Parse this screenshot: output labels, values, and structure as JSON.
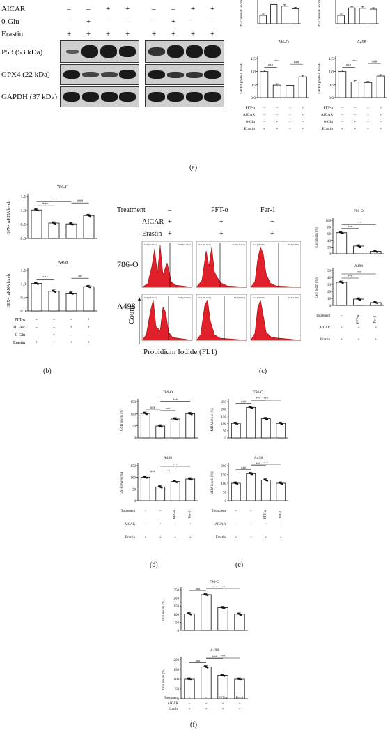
{
  "panel_a": {
    "label": "(a)",
    "blot_rows": [
      {
        "name": "AICAR",
        "signs": [
          "–",
          "–",
          "+",
          "+"
        ],
        "signs2": [
          "–",
          "–",
          "+",
          "+"
        ]
      },
      {
        "name": "0-Glu",
        "signs": [
          "–",
          "+",
          "–",
          "–"
        ],
        "signs2": [
          "–",
          "+",
          "–",
          "–"
        ]
      },
      {
        "name": "Erastin",
        "signs": [
          "+",
          "+",
          "+",
          "+"
        ],
        "signs2": [
          "+",
          "+",
          "+",
          "+"
        ]
      }
    ],
    "bands": [
      "P53 (53 kDa)",
      "GPX4 (22 kDa)",
      "GAPDH (37 kDa)"
    ]
  },
  "panel_b": {
    "label": "(b)"
  },
  "panel_c": {
    "label": "(c)",
    "treatments": [
      "Treatment",
      "AICAR",
      "Erastin"
    ],
    "cols": [
      {
        "t": "–",
        "a": "+",
        "e": "+"
      },
      {
        "t": "PFT-α",
        "a": "+",
        "e": "+"
      },
      {
        "t": "Fer-1",
        "a": "+",
        "e": "+"
      }
    ],
    "cell_lines": [
      "786-O",
      "A498"
    ],
    "y_axis": "Count",
    "x_axis": "Propidium Iodide (FL1)",
    "gates": [
      [
        "V1L(37.94%)",
        "V1R(61.93%)"
      ],
      [
        "V1L(76.37%)",
        "V1R(19.53%)"
      ],
      [
        "V1L(93.34%)",
        "V1R(6.60%)"
      ],
      [
        "V1L(78.30%)",
        "V1R(20.56%)"
      ],
      [
        "V1L(90.44%)",
        "V1R(9.56%)"
      ],
      [
        "V1L(97.55%)",
        "V1R(2.45%)"
      ]
    ]
  },
  "panel_d": {
    "label": "(d)"
  },
  "panel_e": {
    "label": "(e)"
  },
  "panel_f": {
    "label": "(f)"
  },
  "chart_data": [
    {
      "id": "a-p53-786",
      "type": "bar",
      "title": "",
      "ylabel": "P53 protein levels",
      "ylim": [
        0,
        2.5
      ],
      "categories": [
        "1",
        "2",
        "3",
        "4"
      ],
      "values": [
        1.0,
        2.3,
        2.1,
        1.8
      ]
    },
    {
      "id": "a-p53-a498",
      "type": "bar",
      "title": "",
      "ylabel": "P53 protein levels",
      "ylim": [
        0,
        2.5
      ],
      "categories": [
        "1",
        "2",
        "3",
        "4"
      ],
      "values": [
        1.0,
        1.9,
        1.85,
        1.75
      ]
    },
    {
      "id": "a-gpx4-786",
      "type": "bar",
      "title": "786-O",
      "ylabel": "GPX4 protein levels",
      "ylim": [
        0,
        1.5
      ],
      "yticks": [
        "0.0",
        "0.5",
        "1.0",
        "1.5"
      ],
      "categories": [
        "1",
        "2",
        "3",
        "4"
      ],
      "values": [
        1.0,
        0.48,
        0.47,
        0.8
      ],
      "sig": [
        {
          "from": 0,
          "to": 1,
          "label": "***"
        },
        {
          "from": 0,
          "to": 2,
          "label": "***"
        },
        {
          "from": 2,
          "to": 3,
          "label": "###"
        }
      ],
      "conditions": [
        {
          "name": "PFT-α",
          "signs": [
            "–",
            "–",
            "–",
            "+"
          ]
        },
        {
          "name": "AICAR",
          "signs": [
            "–",
            "–",
            "+",
            "+"
          ]
        },
        {
          "name": "0-Glu",
          "signs": [
            "–",
            "+",
            "–",
            "–"
          ]
        },
        {
          "name": "Erastin",
          "signs": [
            "+",
            "+",
            "+",
            "+"
          ]
        }
      ]
    },
    {
      "id": "a-gpx4-a498",
      "type": "bar",
      "title": "A498",
      "ylabel": "GPX4 protein levels",
      "ylim": [
        0,
        1.5
      ],
      "yticks": [
        "0.0",
        "0.5",
        "1.0",
        "1.5"
      ],
      "categories": [
        "1",
        "2",
        "3",
        "4"
      ],
      "values": [
        1.0,
        0.6,
        0.58,
        0.83
      ],
      "sig": [
        {
          "from": 0,
          "to": 1,
          "label": "***"
        },
        {
          "from": 0,
          "to": 2,
          "label": "***"
        },
        {
          "from": 2,
          "to": 3,
          "label": "###"
        }
      ],
      "conditions": [
        {
          "name": "PFT-α",
          "signs": [
            "–",
            "–",
            "–",
            "+"
          ]
        },
        {
          "name": "AICAR",
          "signs": [
            "–",
            "–",
            "+",
            "+"
          ]
        },
        {
          "name": "0-Glu",
          "signs": [
            "–",
            "+",
            "–",
            "–"
          ]
        },
        {
          "name": "Erastin",
          "signs": [
            "+",
            "+",
            "+",
            "+"
          ]
        }
      ]
    },
    {
      "id": "b-786",
      "type": "bar",
      "title": "786-O",
      "ylabel": "GPX4 mRNA levels",
      "ylim": [
        0,
        1.5
      ],
      "yticks": [
        "0.0",
        "0.5",
        "1.0",
        "1.5"
      ],
      "categories": [
        "1",
        "2",
        "3",
        "4"
      ],
      "values": [
        1.02,
        0.55,
        0.52,
        0.82
      ],
      "sig": [
        {
          "from": 0,
          "to": 1,
          "label": "***"
        },
        {
          "from": 0,
          "to": 2,
          "label": "***"
        },
        {
          "from": 2,
          "to": 3,
          "label": "###"
        }
      ]
    },
    {
      "id": "b-a498",
      "type": "bar",
      "title": "A498",
      "ylabel": "GPX4 mRNA levels",
      "ylim": [
        0,
        1.5
      ],
      "yticks": [
        "0.0",
        "0.5",
        "1.0",
        "1.5"
      ],
      "categories": [
        "1",
        "2",
        "3",
        "4"
      ],
      "values": [
        1.02,
        0.73,
        0.66,
        0.9
      ],
      "sig": [
        {
          "from": 0,
          "to": 1,
          "label": "***"
        },
        {
          "from": 2,
          "to": 3,
          "label": "##"
        }
      ],
      "conditions": [
        {
          "name": "PFT-α",
          "signs": [
            "–",
            "–",
            "–",
            "+"
          ]
        },
        {
          "name": "AICAR",
          "signs": [
            "–",
            "–",
            "+",
            "+"
          ]
        },
        {
          "name": "0-Glu",
          "signs": [
            "–",
            "+",
            "–",
            "–"
          ]
        },
        {
          "name": "Erastin",
          "signs": [
            "+",
            "+",
            "+",
            "+"
          ]
        }
      ]
    },
    {
      "id": "c-786",
      "type": "bar",
      "title": "786-O",
      "ylabel": "Cell death (%)",
      "ylim": [
        0,
        100
      ],
      "yticks": [
        "0",
        "20",
        "40",
        "60",
        "80",
        "100"
      ],
      "categories": [
        "–",
        "PFT-α",
        "Fer-1"
      ],
      "values": [
        63,
        23,
        7
      ],
      "sig": [
        {
          "from": 0,
          "to": 1,
          "label": "***"
        },
        {
          "from": 0,
          "to": 2,
          "label": "***"
        }
      ]
    },
    {
      "id": "c-a498",
      "type": "bar",
      "title": "A498",
      "ylabel": "Cell death (%)",
      "ylim": [
        0,
        50
      ],
      "yticks": [
        "0",
        "10",
        "20",
        "30",
        "40",
        "50"
      ],
      "categories": [
        "–",
        "PFT-α",
        "Fer-1"
      ],
      "values": [
        33,
        9,
        4
      ],
      "sig": [
        {
          "from": 0,
          "to": 1,
          "label": "***"
        },
        {
          "from": 0,
          "to": 2,
          "label": "***"
        }
      ],
      "conditions": [
        {
          "name": "Treatment",
          "signs": [
            "–",
            "PFT-α",
            "Fer-1"
          ]
        },
        {
          "name": "AICAR",
          "signs": [
            "+",
            "+",
            "+"
          ]
        },
        {
          "name": "Erastin",
          "signs": [
            "+",
            "+",
            "+"
          ]
        }
      ]
    },
    {
      "id": "d-786",
      "type": "bar",
      "title": "786-O",
      "ylabel": "GSH levels (%)",
      "ylim": [
        0,
        150
      ],
      "yticks": [
        "0",
        "50",
        "100",
        "150"
      ],
      "categories": [
        "1",
        "2",
        "3",
        "4"
      ],
      "values": [
        101,
        49,
        78,
        100
      ],
      "sig": [
        {
          "from": 0,
          "to": 1,
          "label": "###"
        },
        {
          "from": 1,
          "to": 2,
          "label": "***"
        },
        {
          "from": 1,
          "to": 3,
          "label": "***"
        }
      ]
    },
    {
      "id": "d-a498",
      "type": "bar",
      "title": "A498",
      "ylabel": "GSH levels (%)",
      "ylim": [
        0,
        150
      ],
      "yticks": [
        "0",
        "50",
        "100",
        "150"
      ],
      "categories": [
        "–",
        "–",
        "PFT-α",
        "Fer-1"
      ],
      "values": [
        101,
        59,
        82,
        93
      ],
      "sig": [
        {
          "from": 0,
          "to": 1,
          "label": "###"
        },
        {
          "from": 1,
          "to": 2,
          "label": "***"
        },
        {
          "from": 1,
          "to": 3,
          "label": "***"
        }
      ],
      "conditions": [
        {
          "name": "Treatment",
          "signs": [
            "–",
            "–",
            "PFT-α",
            "Fer-1"
          ]
        },
        {
          "name": "AICAR",
          "signs": [
            "–",
            "+",
            "+",
            "+"
          ]
        },
        {
          "name": "Erastin",
          "signs": [
            "+",
            "+",
            "+",
            "+"
          ]
        }
      ]
    },
    {
      "id": "e-786",
      "type": "bar",
      "title": "786-O",
      "ylabel": "MDA levels (%)",
      "ylim": [
        0,
        250
      ],
      "yticks": [
        "0",
        "50",
        "100",
        "150",
        "200",
        "250"
      ],
      "categories": [
        "1",
        "2",
        "3",
        "4"
      ],
      "values": [
        100,
        210,
        132,
        100
      ],
      "sig": [
        {
          "from": 0,
          "to": 1,
          "label": "###"
        },
        {
          "from": 1,
          "to": 2,
          "label": "***"
        },
        {
          "from": 1,
          "to": 3,
          "label": "***"
        }
      ]
    },
    {
      "id": "e-a498",
      "type": "bar",
      "title": "A498",
      "ylabel": "MDA levels (%)",
      "ylim": [
        0,
        200
      ],
      "yticks": [
        "0",
        "50",
        "100",
        "150",
        "200"
      ],
      "categories": [
        "–",
        "–",
        "PFT-α",
        "Fer-1"
      ],
      "values": [
        100,
        155,
        118,
        100
      ],
      "sig": [
        {
          "from": 0,
          "to": 1,
          "label": "###"
        },
        {
          "from": 1,
          "to": 2,
          "label": "***"
        },
        {
          "from": 1,
          "to": 3,
          "label": "***"
        }
      ],
      "conditions": [
        {
          "name": "Treatment",
          "signs": [
            "–",
            "–",
            "PFT-α",
            "Fer-1"
          ]
        },
        {
          "name": "AICAR",
          "signs": [
            "–",
            "+",
            "+",
            "+"
          ]
        },
        {
          "name": "Erastin",
          "signs": [
            "+",
            "+",
            "+",
            "+"
          ]
        }
      ]
    },
    {
      "id": "f-786",
      "type": "bar",
      "title": "786-O",
      "ylabel": "Iron levels (%)",
      "ylim": [
        0,
        250
      ],
      "yticks": [
        "0",
        "50",
        "100",
        "150",
        "200",
        "250"
      ],
      "categories": [
        "1",
        "2",
        "3",
        "4"
      ],
      "values": [
        102,
        220,
        140,
        100
      ],
      "sig": [
        {
          "from": 0,
          "to": 1,
          "label": "###"
        },
        {
          "from": 1,
          "to": 2,
          "label": "***"
        },
        {
          "from": 1,
          "to": 3,
          "label": "***"
        }
      ]
    },
    {
      "id": "f-a498",
      "type": "bar",
      "title": "A498",
      "ylabel": "Iron levels (%)",
      "ylim": [
        0,
        200
      ],
      "yticks": [
        "0",
        "50",
        "100",
        "150",
        "200"
      ],
      "categories": [
        "–",
        "–",
        "PFT-α",
        "Fer-1"
      ],
      "values": [
        100,
        163,
        120,
        100
      ],
      "sig": [
        {
          "from": 0,
          "to": 1,
          "label": "###"
        },
        {
          "from": 1,
          "to": 2,
          "label": "***"
        },
        {
          "from": 1,
          "to": 3,
          "label": "***"
        }
      ],
      "conditions": [
        {
          "name": "Treatment",
          "signs": [
            "–",
            "–",
            "PFT-α",
            "Fer-1"
          ]
        },
        {
          "name": "AICAR",
          "signs": [
            "–",
            "+",
            "+",
            "+"
          ]
        },
        {
          "name": "Erastin",
          "signs": [
            "+",
            "+",
            "+",
            "+"
          ]
        }
      ]
    }
  ]
}
